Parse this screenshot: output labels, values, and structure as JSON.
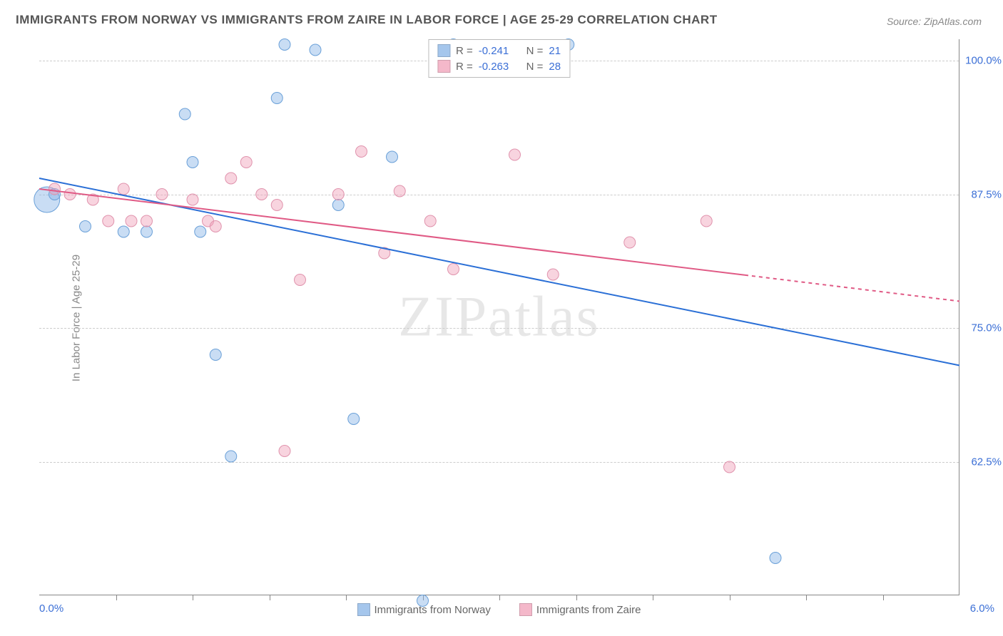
{
  "title": "IMMIGRANTS FROM NORWAY VS IMMIGRANTS FROM ZAIRE IN LABOR FORCE | AGE 25-29 CORRELATION CHART",
  "source_label": "Source: ",
  "source_name": "ZipAtlas.com",
  "ylabel": "In Labor Force | Age 25-29",
  "watermark": "ZIPatlas",
  "chart": {
    "type": "scatter",
    "xlim": [
      0,
      6
    ],
    "ylim": [
      50,
      102
    ],
    "xticks": [
      0.5,
      1,
      1.5,
      2,
      2.5,
      3,
      3.5,
      4,
      4.5,
      5,
      5.5
    ],
    "yticks": [
      62.5,
      75.0,
      87.5,
      100.0
    ],
    "ytick_labels": [
      "62.5%",
      "75.0%",
      "87.5%",
      "100.0%"
    ],
    "x_left_label": "0.0%",
    "x_right_label": "6.0%",
    "background_color": "#ffffff",
    "grid_color": "#cccccc",
    "point_radius": 8,
    "series": [
      {
        "name": "Immigrants from Norway",
        "color_fill": "rgba(135,180,230,0.45)",
        "color_stroke": "#6aa0d8",
        "swatch_color": "#a5c6ec",
        "R": "-0.241",
        "N": "21",
        "trend": {
          "x1": 0.0,
          "y1": 89.0,
          "x2": 6.0,
          "y2": 71.5,
          "color": "#2a6fd6",
          "width": 2
        },
        "points": [
          {
            "x": 0.05,
            "y": 87.0,
            "r": 18
          },
          {
            "x": 0.1,
            "y": 87.5,
            "r": 8
          },
          {
            "x": 0.3,
            "y": 84.5,
            "r": 8
          },
          {
            "x": 0.55,
            "y": 84.0,
            "r": 8
          },
          {
            "x": 0.7,
            "y": 84.0,
            "r": 8
          },
          {
            "x": 0.95,
            "y": 95.0,
            "r": 8
          },
          {
            "x": 1.0,
            "y": 90.5,
            "r": 8
          },
          {
            "x": 1.05,
            "y": 84.0,
            "r": 8
          },
          {
            "x": 1.15,
            "y": 72.5,
            "r": 8
          },
          {
            "x": 1.25,
            "y": 63.0,
            "r": 8
          },
          {
            "x": 1.55,
            "y": 96.5,
            "r": 8
          },
          {
            "x": 1.6,
            "y": 101.5,
            "r": 8
          },
          {
            "x": 1.8,
            "y": 101.0,
            "r": 8
          },
          {
            "x": 1.95,
            "y": 86.5,
            "r": 8
          },
          {
            "x": 2.05,
            "y": 66.5,
            "r": 8
          },
          {
            "x": 2.3,
            "y": 91.0,
            "r": 8
          },
          {
            "x": 2.5,
            "y": 49.5,
            "r": 8
          },
          {
            "x": 2.7,
            "y": 101.5,
            "r": 8
          },
          {
            "x": 3.45,
            "y": 101.5,
            "r": 8
          },
          {
            "x": 4.8,
            "y": 53.5,
            "r": 8
          }
        ]
      },
      {
        "name": "Immigrants from Zaire",
        "color_fill": "rgba(240,160,185,0.45)",
        "color_stroke": "#e093ad",
        "swatch_color": "#f4b8ca",
        "R": "-0.263",
        "N": "28",
        "trend": {
          "x1": 0.0,
          "y1": 88.0,
          "x2": 6.0,
          "y2": 77.5,
          "color": "#e05a85",
          "width": 2,
          "dash_after_x": 4.6
        },
        "points": [
          {
            "x": 0.1,
            "y": 88.0,
            "r": 8
          },
          {
            "x": 0.2,
            "y": 87.5,
            "r": 8
          },
          {
            "x": 0.35,
            "y": 87.0,
            "r": 8
          },
          {
            "x": 0.45,
            "y": 85.0,
            "r": 8
          },
          {
            "x": 0.55,
            "y": 88.0,
            "r": 8
          },
          {
            "x": 0.6,
            "y": 85.0,
            "r": 8
          },
          {
            "x": 0.7,
            "y": 85.0,
            "r": 8
          },
          {
            "x": 0.8,
            "y": 87.5,
            "r": 8
          },
          {
            "x": 1.0,
            "y": 87.0,
            "r": 8
          },
          {
            "x": 1.1,
            "y": 85.0,
            "r": 8
          },
          {
            "x": 1.15,
            "y": 84.5,
            "r": 8
          },
          {
            "x": 1.25,
            "y": 89.0,
            "r": 8
          },
          {
            "x": 1.35,
            "y": 90.5,
            "r": 8
          },
          {
            "x": 1.45,
            "y": 87.5,
            "r": 8
          },
          {
            "x": 1.55,
            "y": 86.5,
            "r": 8
          },
          {
            "x": 1.6,
            "y": 63.5,
            "r": 8
          },
          {
            "x": 1.7,
            "y": 79.5,
            "r": 8
          },
          {
            "x": 1.95,
            "y": 87.5,
            "r": 8
          },
          {
            "x": 2.1,
            "y": 91.5,
            "r": 8
          },
          {
            "x": 2.25,
            "y": 82.0,
            "r": 8
          },
          {
            "x": 2.35,
            "y": 87.8,
            "r": 8
          },
          {
            "x": 2.55,
            "y": 85.0,
            "r": 8
          },
          {
            "x": 2.7,
            "y": 80.5,
            "r": 8
          },
          {
            "x": 3.1,
            "y": 91.2,
            "r": 8
          },
          {
            "x": 3.35,
            "y": 80.0,
            "r": 8
          },
          {
            "x": 3.85,
            "y": 83.0,
            "r": 8
          },
          {
            "x": 4.35,
            "y": 85.0,
            "r": 8
          },
          {
            "x": 4.5,
            "y": 62.0,
            "r": 8
          }
        ]
      }
    ]
  },
  "legend_bottom": {
    "label1": "Immigrants from Norway",
    "label2": "Immigrants from Zaire"
  },
  "legend_top": {
    "R_label": "R =",
    "N_label": "N ="
  }
}
